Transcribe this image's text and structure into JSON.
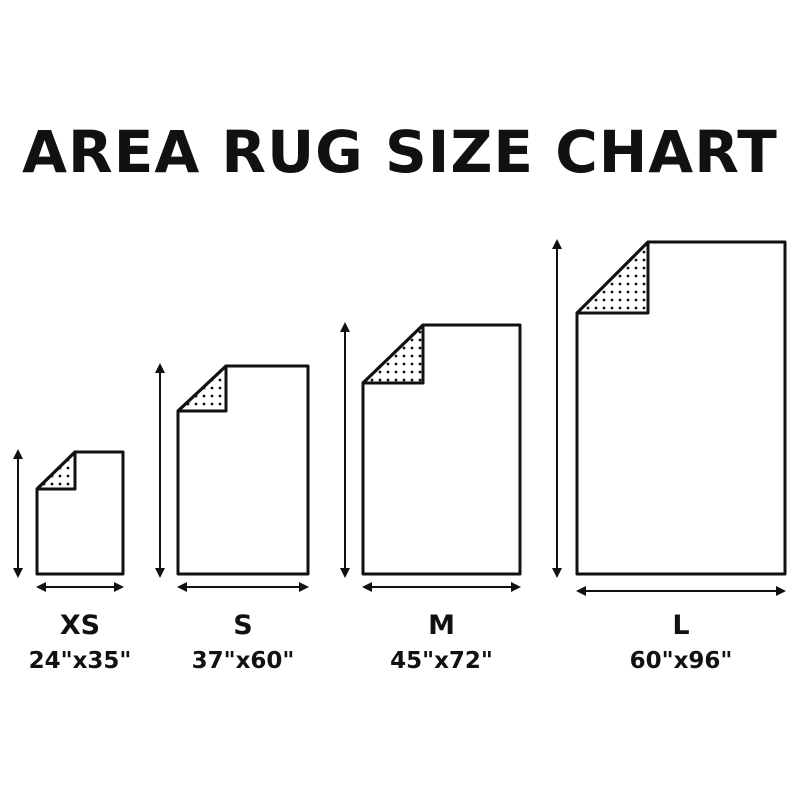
{
  "title": "AREA RUG SIZE CHART",
  "colors": {
    "line": "#111111",
    "background": "#ffffff"
  },
  "rugs": [
    {
      "size": "XS",
      "dimensions": "24\"x35\"",
      "width_in": 24,
      "length_in": 35
    },
    {
      "size": "S",
      "dimensions": "37\"x60\"",
      "width_in": 37,
      "length_in": 60
    },
    {
      "size": "M",
      "dimensions": "45\"x72\"",
      "width_in": 45,
      "length_in": 72
    },
    {
      "size": "L",
      "dimensions": "60\"x96\"",
      "width_in": 60,
      "length_in": 96
    }
  ]
}
